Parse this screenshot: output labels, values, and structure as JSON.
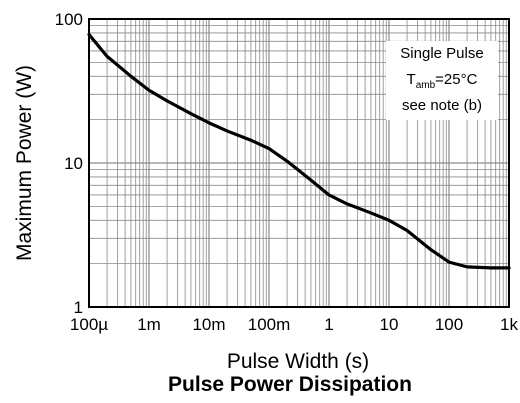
{
  "chart_data": {
    "type": "line",
    "title": "Pulse Power Dissipation",
    "xlabel": "Pulse Width (s)",
    "ylabel": "Maximum Power (W)",
    "x_scale": "log",
    "y_scale": "log",
    "xlim": [
      0.0001,
      1000
    ],
    "ylim": [
      1,
      100
    ],
    "grid": true,
    "x_ticks": [
      {
        "value": 0.0001,
        "label": "100µ"
      },
      {
        "value": 0.001,
        "label": "1m"
      },
      {
        "value": 0.01,
        "label": "10m"
      },
      {
        "value": 0.1,
        "label": "100m"
      },
      {
        "value": 1,
        "label": "1"
      },
      {
        "value": 10,
        "label": "10"
      },
      {
        "value": 100,
        "label": "100"
      },
      {
        "value": 1000,
        "label": "1k"
      }
    ],
    "y_ticks": [
      {
        "value": 1,
        "label": "1"
      },
      {
        "value": 10,
        "label": "10"
      },
      {
        "value": 100,
        "label": "100"
      }
    ],
    "series": [
      {
        "x": [
          0.0001,
          0.0002,
          0.0005,
          0.001,
          0.002,
          0.005,
          0.01,
          0.02,
          0.05,
          0.1,
          0.2,
          0.5,
          1,
          2,
          5,
          10,
          20,
          50,
          100,
          200,
          500,
          1000
        ],
        "y": [
          78,
          55,
          40,
          32,
          27,
          22,
          19,
          16.7,
          14.4,
          12.6,
          10.3,
          7.6,
          6.0,
          5.2,
          4.5,
          4.0,
          3.4,
          2.5,
          2.05,
          1.9,
          1.87,
          1.87
        ]
      }
    ],
    "annotation": {
      "line1": "Single Pulse",
      "line2_main": "T",
      "line2_sub": "amb",
      "line2_rest": "=25°C",
      "line3": "see note (b)"
    }
  }
}
